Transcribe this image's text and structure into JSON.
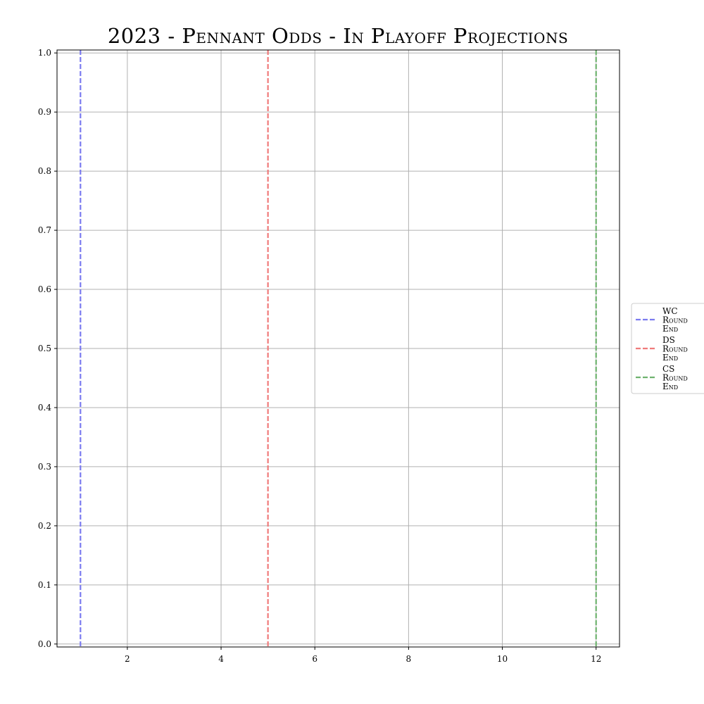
{
  "chart_data": {
    "type": "line",
    "title": "2023 - Pennant Odds - In Playoff Projections",
    "xlabel": "",
    "ylabel": "",
    "xlim": [
      0.5,
      12.5
    ],
    "ylim": [
      -0.005,
      1.005
    ],
    "x_ticks": [
      2,
      4,
      6,
      8,
      10,
      12
    ],
    "y_ticks": [
      0.0,
      0.1,
      0.2,
      0.3,
      0.4,
      0.5,
      0.6,
      0.7,
      0.8,
      0.9,
      1.0
    ],
    "grid": true,
    "legend_placement": "right",
    "series": [],
    "vlines": [
      {
        "name": "WC Round End",
        "x": 1,
        "color": "#7b7bf0",
        "style": "dashed"
      },
      {
        "name": "DS Round End",
        "x": 5,
        "color": "#f07b7b",
        "style": "dashed"
      },
      {
        "name": "CS Round End",
        "x": 12,
        "color": "#6fb36f",
        "style": "dashed"
      }
    ]
  }
}
